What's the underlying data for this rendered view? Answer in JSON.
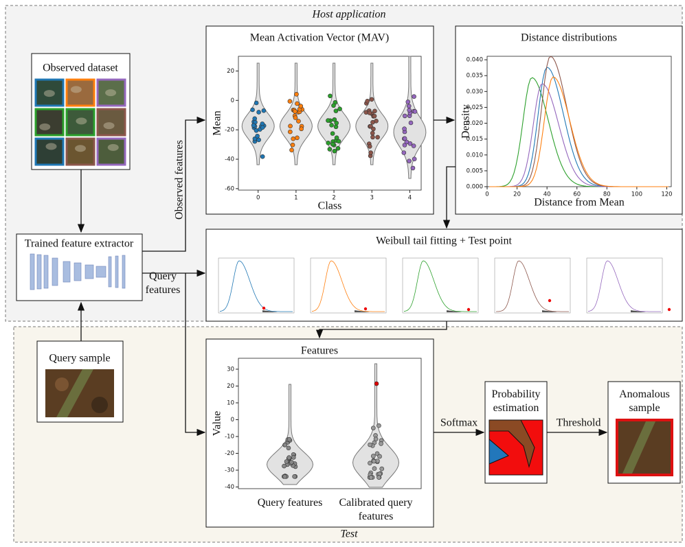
{
  "host_label": "Host application",
  "test_label": "Test",
  "observed_dataset": {
    "title": "Observed dataset"
  },
  "extractor": {
    "title": "Trained feature extractor"
  },
  "query_sample": {
    "title": "Query sample"
  },
  "edges": {
    "observed_features": "Observed features",
    "query_features": "Query features",
    "softmax": "Softmax",
    "threshold": "Threshold"
  },
  "mav": {
    "title": "Mean Activation Vector (MAV)",
    "ylabel": "Mean",
    "xlabel": "Class",
    "ylim": [
      -61,
      30
    ],
    "yticks": [
      -60,
      -40,
      -20,
      0,
      20
    ],
    "xlim": [
      -0.52,
      4.3
    ],
    "xticks": [
      0,
      1,
      2,
      3,
      4
    ]
  },
  "distance": {
    "title": "Distance distributions",
    "ylabel": "Density",
    "xlabel": "Distance from Mean",
    "ylim": [
      0,
      0.0411
    ],
    "yticks": [
      {
        "value": 0,
        "label": "0.000"
      },
      {
        "value": 0.005,
        "label": "0.005"
      },
      {
        "value": 0.01,
        "label": "0.010"
      },
      {
        "value": 0.015,
        "label": "0.015"
      },
      {
        "value": 0.02,
        "label": "0.020"
      },
      {
        "value": 0.025,
        "label": "0.025"
      },
      {
        "value": 0.03,
        "label": "0.030"
      },
      {
        "value": 0.035,
        "label": "0.035"
      },
      {
        "value": 0.04,
        "label": "0.040"
      }
    ],
    "xlim": [
      0,
      123
    ],
    "xticks": [
      0,
      20,
      40,
      60,
      80,
      100,
      120
    ]
  },
  "weibull": {
    "title": "Weibull tail fitting + Test point"
  },
  "features": {
    "title": "Features",
    "ylabel": "Value",
    "ylim": [
      -41,
      36.5
    ],
    "yticks": [
      -40,
      -30,
      -20,
      -10,
      0,
      10,
      20,
      30
    ],
    "categories": [
      "Query features",
      "Calibrated query features"
    ]
  },
  "probability": {
    "title": "Probability estimation"
  },
  "anomalous": {
    "title": "Anomalous sample"
  }
}
